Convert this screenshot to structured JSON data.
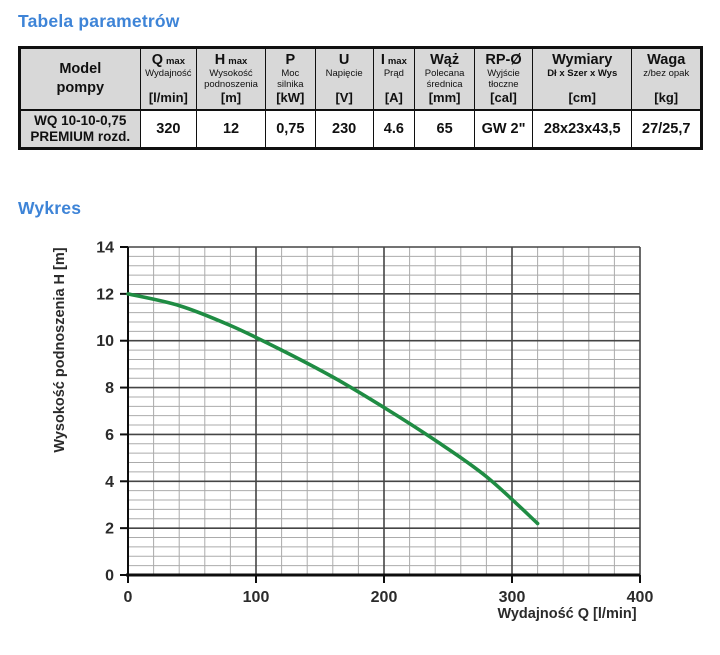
{
  "page": {
    "background": "#ffffff",
    "accent_blue": "#3e84d7"
  },
  "sections": {
    "parameters_title": "Tabela parametrów",
    "chart_title": "Wykres"
  },
  "table": {
    "model_header": [
      "Model",
      "pompy"
    ],
    "columns": [
      {
        "key": "qmax",
        "main": "Q",
        "suffix": "max",
        "sub": "Wydajność",
        "unit": "[l/min]"
      },
      {
        "key": "hmax",
        "main": "H",
        "suffix": "max",
        "sub": "Wysokość podnoszenia",
        "unit": "[m]"
      },
      {
        "key": "p",
        "main": "P",
        "suffix": "",
        "sub": "Moc silnika",
        "unit": "[kW]"
      },
      {
        "key": "u",
        "main": "U",
        "suffix": "",
        "sub": "Napięcie",
        "unit": "[V]"
      },
      {
        "key": "imax",
        "main": "I",
        "suffix": "max",
        "sub": "Prąd",
        "unit": "[A]"
      },
      {
        "key": "waz",
        "main": "Wąż",
        "suffix": "",
        "sub": "Polecana średnica",
        "unit": "[mm]"
      },
      {
        "key": "rp",
        "main": "RP-Ø",
        "suffix": "",
        "sub": "Wyjście tłoczne",
        "unit": "[cal]"
      },
      {
        "key": "wymiary",
        "main": "Wymiary",
        "suffix": "",
        "sub": "Dł x Szer x Wys",
        "sub_bold": true,
        "unit": "[cm]"
      },
      {
        "key": "waga",
        "main": "Waga",
        "suffix": "",
        "sub": "z/bez opak",
        "unit": "[kg]"
      }
    ],
    "row": {
      "model": [
        "WQ 10-10-0,75",
        "PREMIUM rozd."
      ],
      "values": [
        "320",
        "12",
        "0,75",
        "230",
        "4.6",
        "65",
        "GW 2\"",
        "28x23x43,5",
        "27/25,7"
      ]
    }
  },
  "chart_data": {
    "type": "line",
    "title": "",
    "xlabel": "Wydajność Q [l/min]",
    "ylabel": "Wysokość podnoszenia H [m]",
    "xlim": [
      0,
      400
    ],
    "ylim": [
      0,
      14
    ],
    "x_major_ticks": [
      0,
      100,
      200,
      300,
      400
    ],
    "y_major_ticks": [
      0,
      2,
      4,
      6,
      8,
      10,
      12,
      14
    ],
    "x_minor_step": 20,
    "y_minor_step": 0.4,
    "grid": true,
    "legend": "none",
    "line_color": "#1f8c43",
    "series": [
      {
        "name": "WQ 10-10-0,75 PREMIUM",
        "points": [
          [
            0,
            12.0
          ],
          [
            40,
            11.5
          ],
          [
            80,
            10.65
          ],
          [
            120,
            9.6
          ],
          [
            160,
            8.45
          ],
          [
            200,
            7.15
          ],
          [
            240,
            5.75
          ],
          [
            280,
            4.2
          ],
          [
            320,
            2.2
          ]
        ]
      }
    ]
  }
}
